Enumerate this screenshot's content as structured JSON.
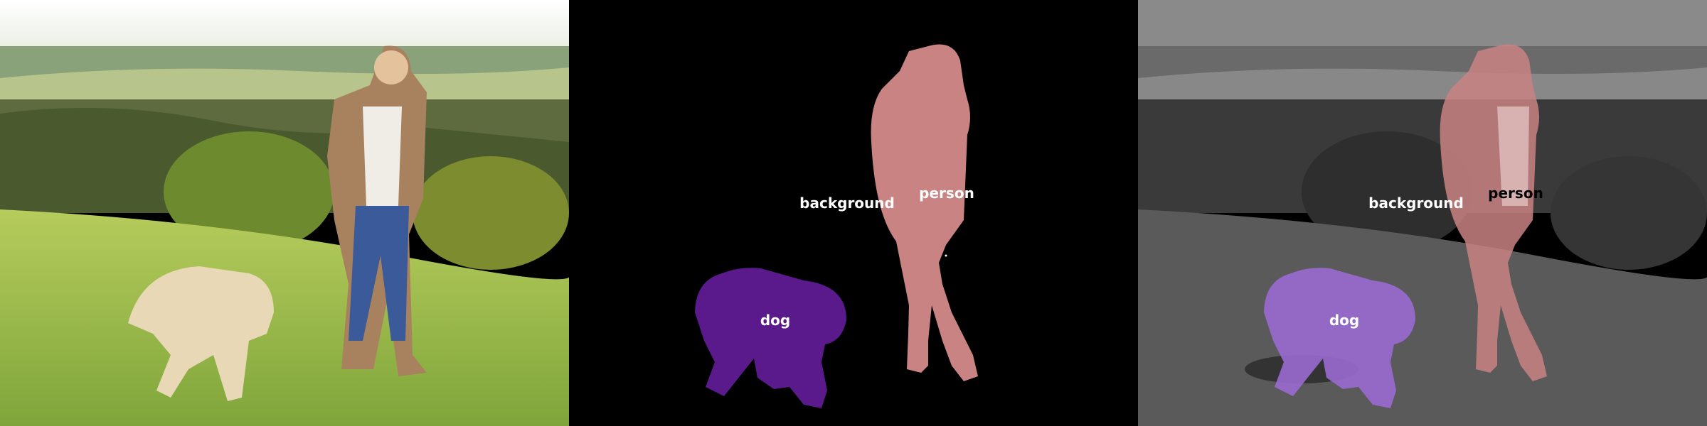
{
  "panels": [
    {
      "id": "original-photo"
    },
    {
      "id": "segmentation-mask"
    },
    {
      "id": "overlay"
    }
  ],
  "labels": {
    "background": "background",
    "person": "person",
    "dog": "dog"
  },
  "colors": {
    "person_mask": "#c98383",
    "dog_mask": "#5a1a8c",
    "background_mask": "#000000",
    "sky": "#f2f2ea",
    "grass": "#9cbc4c"
  }
}
